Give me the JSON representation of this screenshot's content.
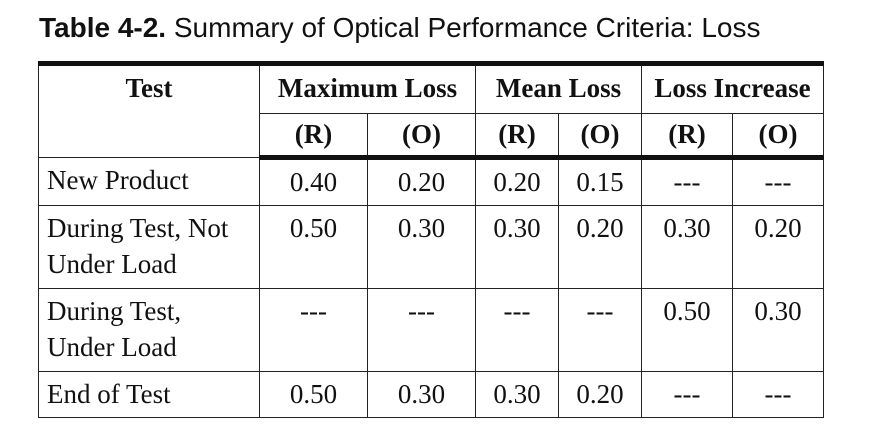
{
  "caption": {
    "number": "Table 4-2.",
    "title": "Summary of Optical Performance Criteria: Loss"
  },
  "table": {
    "headers": {
      "test": "Test",
      "groups": [
        "Maximum Loss",
        "Mean Loss",
        "Loss Increase"
      ],
      "sub": [
        "(R)",
        "(O)",
        "(R)",
        "(O)",
        "(R)",
        "(O)"
      ]
    },
    "rows": [
      {
        "label": "New Product",
        "values": [
          "0.40",
          "0.20",
          "0.20",
          "0.15",
          "---",
          "---"
        ]
      },
      {
        "label": "During Test, Not Under Load",
        "values": [
          "0.50",
          "0.30",
          "0.30",
          "0.20",
          "0.30",
          "0.20"
        ]
      },
      {
        "label": "During Test, Under Load",
        "values": [
          "---",
          "---",
          "---",
          "---",
          "0.50",
          "0.30"
        ]
      },
      {
        "label": "End of Test",
        "values": [
          "0.50",
          "0.30",
          "0.30",
          "0.20",
          "---",
          "---"
        ]
      }
    ]
  }
}
